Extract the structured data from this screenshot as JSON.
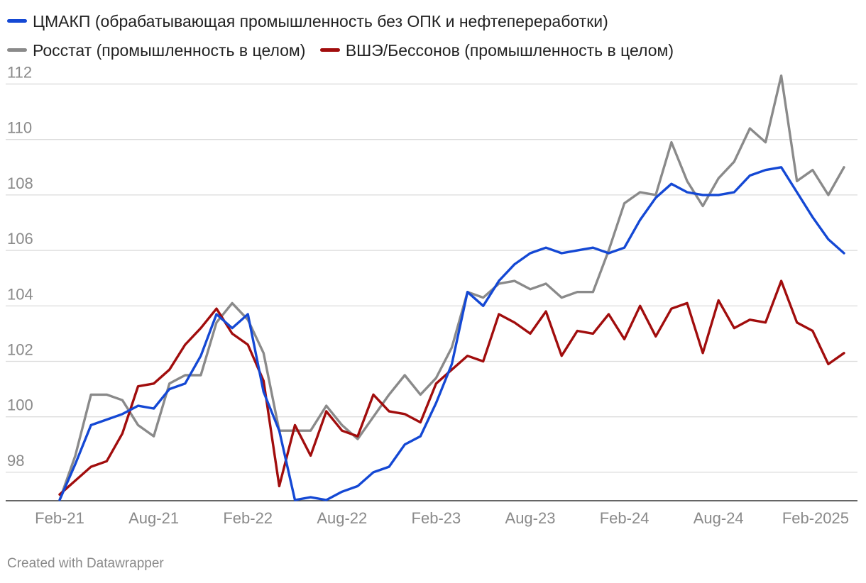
{
  "chart_data": {
    "type": "line",
    "ylim": [
      97,
      112.6
    ],
    "yticks": [
      98,
      100,
      102,
      104,
      106,
      108,
      110,
      112
    ],
    "x_start": "2021-02",
    "x_tick_labels": [
      {
        "label": "Feb-21",
        "date": "2021-02"
      },
      {
        "label": "Aug-21",
        "date": "2021-08"
      },
      {
        "label": "Feb-22",
        "date": "2022-02"
      },
      {
        "label": "Aug-22",
        "date": "2022-08"
      },
      {
        "label": "Feb-23",
        "date": "2023-02"
      },
      {
        "label": "Aug-23",
        "date": "2023-08"
      },
      {
        "label": "Feb-24",
        "date": "2024-02"
      },
      {
        "label": "Aug-24",
        "date": "2024-08"
      },
      {
        "label": "Feb-2025",
        "date": "2025-02"
      }
    ],
    "legend_position": "top",
    "grid": true,
    "series": [
      {
        "name": "ЦМАКП (обрабатывающая промышленность без ОПК и нефтепереработки)",
        "color": "#1448d4",
        "values": [
          97.0,
          98.3,
          99.7,
          99.9,
          100.1,
          100.4,
          100.3,
          101.0,
          101.2,
          102.2,
          103.7,
          103.2,
          103.7,
          100.9,
          99.5,
          97.0,
          97.1,
          97.0,
          97.3,
          97.5,
          98.0,
          98.2,
          99.0,
          99.3,
          100.5,
          101.9,
          104.5,
          104.0,
          104.9,
          105.5,
          105.9,
          106.1,
          105.9,
          106.0,
          106.1,
          105.9,
          106.1,
          107.1,
          107.9,
          108.4,
          108.1,
          108.0,
          108.0,
          108.1,
          108.7,
          108.9,
          109.0,
          108.1,
          107.2,
          106.4,
          105.9
        ]
      },
      {
        "name": "Росстат (промышленность в целом)",
        "color": "#8a8a8a",
        "values": [
          97.0,
          98.6,
          100.8,
          100.8,
          100.6,
          99.7,
          99.3,
          101.2,
          101.5,
          101.5,
          103.4,
          104.1,
          103.5,
          102.3,
          99.5,
          99.5,
          99.5,
          100.4,
          99.7,
          99.2,
          100.0,
          100.8,
          101.5,
          100.8,
          101.4,
          102.5,
          104.5,
          104.3,
          104.8,
          104.9,
          104.6,
          104.8,
          104.3,
          104.5,
          104.5,
          106.0,
          107.7,
          108.1,
          108.0,
          109.9,
          108.5,
          107.6,
          108.6,
          109.2,
          110.4,
          109.9,
          112.3,
          108.5,
          108.9,
          108.0,
          109.0
        ]
      },
      {
        "name": "ВШЭ/Бессонов (промышленность в целом)",
        "color": "#a10d0d",
        "values": [
          97.2,
          97.7,
          98.2,
          98.4,
          99.4,
          101.1,
          101.2,
          101.7,
          102.6,
          103.2,
          103.9,
          103.0,
          102.6,
          101.3,
          97.5,
          99.7,
          98.6,
          100.2,
          99.5,
          99.3,
          100.8,
          100.2,
          100.1,
          99.8,
          101.2,
          101.7,
          102.2,
          102.0,
          103.7,
          103.4,
          103.0,
          103.8,
          102.2,
          103.1,
          103.0,
          103.7,
          102.8,
          104.0,
          102.9,
          103.9,
          104.1,
          102.3,
          104.2,
          103.2,
          103.5,
          103.4,
          104.9,
          103.4,
          103.1,
          101.9,
          102.3
        ]
      }
    ]
  },
  "credit": "Created with Datawrapper"
}
